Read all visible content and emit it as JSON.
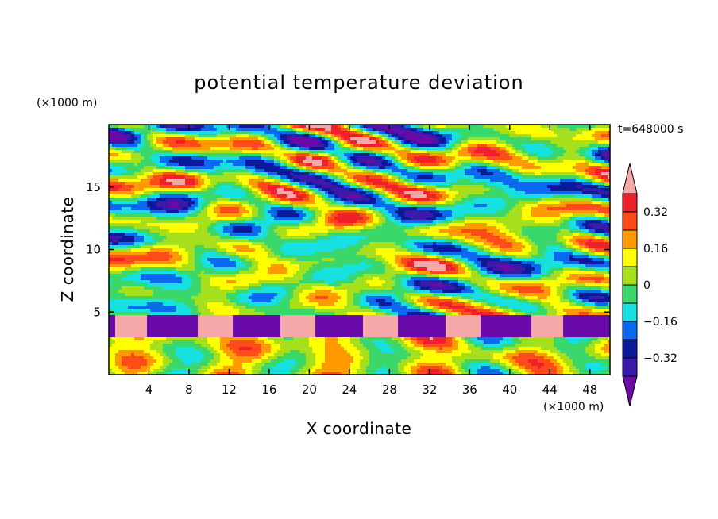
{
  "chart_data": {
    "type": "heatmap",
    "title": "potential temperature deviation",
    "xlabel": "X coordinate",
    "ylabel": "Z coordinate",
    "x_unit": "(×1000 m)",
    "y_unit": "(×1000 m)",
    "time_label": "t=648000 s",
    "xlim": [
      0,
      50
    ],
    "ylim": [
      0,
      20
    ],
    "x_ticks": [
      4,
      8,
      12,
      16,
      20,
      24,
      28,
      32,
      36,
      40,
      44,
      48
    ],
    "y_ticks": [
      5,
      10,
      15
    ],
    "colorbar": {
      "levels": [
        -0.4,
        -0.32,
        -0.24,
        -0.16,
        -0.08,
        0,
        0.08,
        0.16,
        0.24,
        0.32,
        0.4
      ],
      "tick_labels": [
        "0.32",
        "0.16",
        "0",
        "−0.16",
        "−0.32"
      ],
      "tick_values": [
        0.32,
        0.16,
        0,
        -0.16,
        -0.32
      ],
      "colors": [
        "#6a0aa8",
        "#3a1aa8",
        "#0a1a9a",
        "#0a6aee",
        "#16e0e0",
        "#3ad86a",
        "#a6e01c",
        "#ffff00",
        "#ff9a00",
        "#ff4a1a",
        "#f0202a",
        "#f6a8a8"
      ]
    },
    "grid": false
  }
}
